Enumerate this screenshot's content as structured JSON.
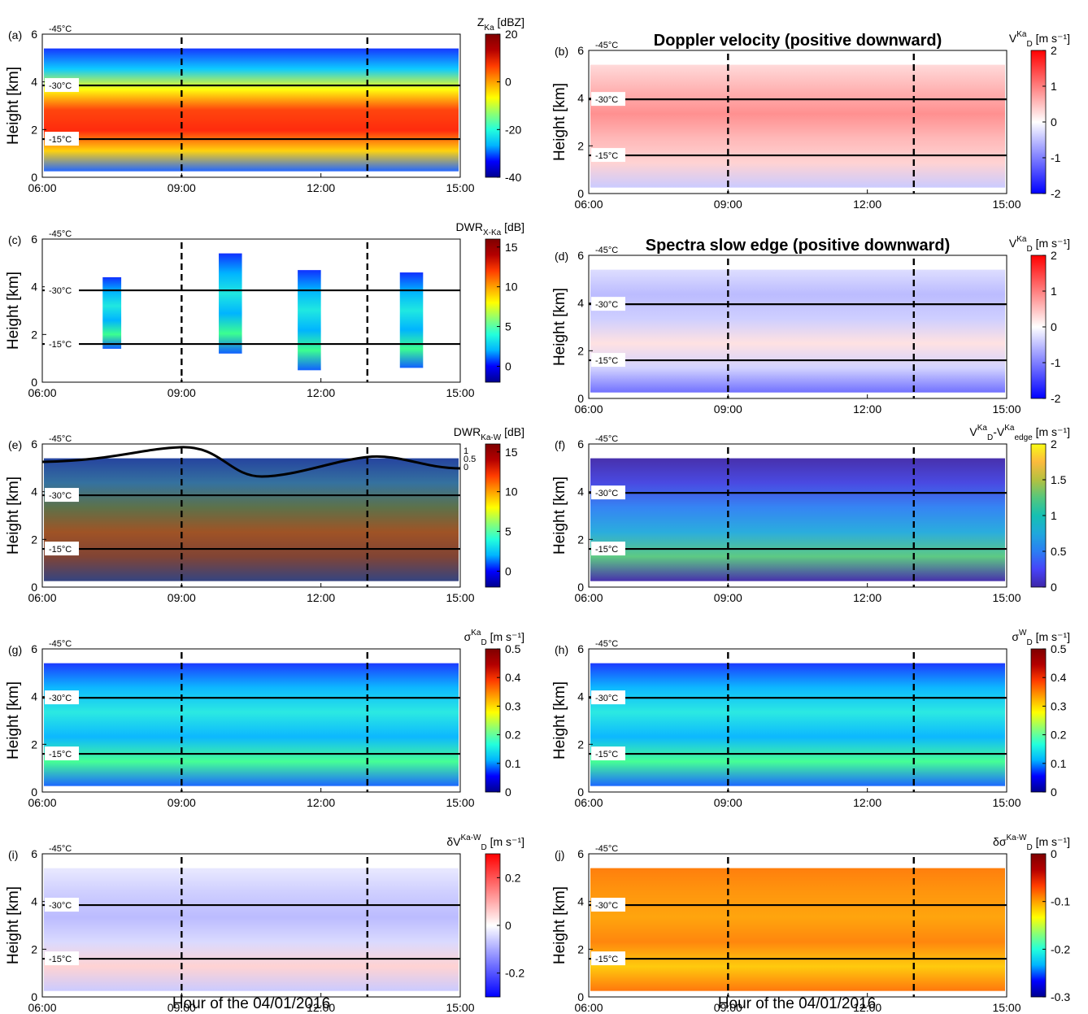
{
  "figure": {
    "xlabel": "Hour of the 04/01/2016",
    "ylabel": "Height [km]"
  },
  "colormaps": {
    "jet": [
      "#00008f",
      "#0000ff",
      "#00b4ff",
      "#23ffdc",
      "#8cff73",
      "#ffff00",
      "#ffa000",
      "#ff3c00",
      "#b40000",
      "#7f0000"
    ],
    "bwr": [
      "#0000ff",
      "#7f7fff",
      "#ffffff",
      "#ff7f7f",
      "#ff0000"
    ],
    "parula": [
      "#3e26a8",
      "#4743f8",
      "#2b7ef3",
      "#1fa8dc",
      "#15c0b2",
      "#55c77d",
      "#b4c140",
      "#fcba3d",
      "#f9fb14"
    ]
  },
  "chart_data": [
    {
      "panel": "(a)",
      "type": "heatmap",
      "title": "",
      "cmap": "jet",
      "cb_label": "Z",
      "cb_sub": "Ka",
      "cb_sup": "",
      "cb_unit": "[dBZ]",
      "cb_range": [
        -40,
        20
      ],
      "cb_ticks": [
        20,
        0,
        -20,
        -40
      ],
      "x_ticks": [
        "06:00",
        "09:00",
        "12:00",
        "15:00"
      ],
      "xlim": [
        6,
        15
      ],
      "y_ticks": [
        0,
        2,
        4,
        6
      ],
      "ylim": [
        0,
        6
      ],
      "dashed_x": [
        9,
        13
      ],
      "isotherms": [
        {
          "label": "-45°C",
          "h": 6.0
        },
        {
          "label": "-30°C",
          "h": 3.85
        },
        {
          "label": "-15°C",
          "h": 1.6
        }
      ]
    },
    {
      "panel": "(b)",
      "type": "heatmap",
      "title": "Doppler velocity (positive downward)",
      "cmap": "bwr",
      "cb_label": "V",
      "cb_sub": "D",
      "cb_sup": "Ka",
      "cb_unit": "[m s⁻¹]",
      "cb_range": [
        -2,
        2
      ],
      "cb_ticks": [
        2,
        1,
        0,
        -1,
        -2
      ],
      "x_ticks": [
        "06:00",
        "09:00",
        "12:00",
        "15:00"
      ],
      "xlim": [
        6,
        15
      ],
      "y_ticks": [
        0,
        2,
        4,
        6
      ],
      "ylim": [
        0,
        6
      ],
      "dashed_x": [
        9,
        13
      ],
      "isotherms": [
        {
          "label": "-45°C",
          "h": 6.0
        },
        {
          "label": "-30°C",
          "h": 3.95
        },
        {
          "label": "-15°C",
          "h": 1.6
        }
      ]
    },
    {
      "panel": "(c)",
      "type": "heatmap",
      "title": "",
      "cmap": "jet",
      "cb_label": "DWR",
      "cb_sub": "X-Ka",
      "cb_sup": "",
      "cb_unit": "[dB]",
      "cb_range": [
        -2,
        16
      ],
      "cb_ticks": [
        15,
        10,
        5,
        0
      ],
      "x_ticks": [
        "06:00",
        "09:00",
        "12:00",
        "15:00"
      ],
      "xlim": [
        6,
        15
      ],
      "y_ticks": [
        0,
        2,
        4,
        6
      ],
      "ylim": [
        0,
        6
      ],
      "dashed_x": [
        9,
        13
      ],
      "isotherms": [
        {
          "label": "-45°C",
          "h": 6.0
        },
        {
          "label": "-30°C",
          "h": 3.85
        },
        {
          "label": "-15°C",
          "h": 1.6
        }
      ]
    },
    {
      "panel": "(d)",
      "type": "heatmap",
      "title": "Spectra slow edge (positive downward)",
      "cmap": "bwr",
      "cb_label": "V",
      "cb_sub": "D",
      "cb_sup": "Ka",
      "cb_unit": "[m s⁻¹]",
      "cb_range": [
        -2,
        2
      ],
      "cb_ticks": [
        2,
        1,
        0,
        -1,
        -2
      ],
      "x_ticks": [
        "06:00",
        "09:00",
        "12:00",
        "15:00"
      ],
      "xlim": [
        6,
        15
      ],
      "y_ticks": [
        0,
        2,
        4,
        6
      ],
      "ylim": [
        0,
        6
      ],
      "dashed_x": [
        9,
        13
      ],
      "isotherms": [
        {
          "label": "-45°C",
          "h": 6.0
        },
        {
          "label": "-30°C",
          "h": 3.95
        },
        {
          "label": "-15°C",
          "h": 1.6
        }
      ]
    },
    {
      "panel": "(e)",
      "type": "heatmap",
      "title": "",
      "cmap": "jet",
      "cb_label": "DWR",
      "cb_sub": "Ka-W",
      "cb_sup": "",
      "cb_unit": "[dB]",
      "cb_range": [
        -2,
        16
      ],
      "cb_ticks": [
        15,
        10,
        5,
        0
      ],
      "x_ticks": [
        "06:00",
        "09:00",
        "12:00",
        "15:00"
      ],
      "xlim": [
        6,
        15
      ],
      "y_ticks": [
        0,
        2,
        4,
        6
      ],
      "ylim": [
        0,
        6
      ],
      "dashed_x": [
        9,
        13
      ],
      "isotherms": [
        {
          "label": "-45°C",
          "h": 6.0
        },
        {
          "label": "-30°C",
          "h": 3.85
        },
        {
          "label": "-15°C",
          "h": 1.6
        }
      ],
      "right_axis": {
        "ticks": [
          "1",
          "0.5",
          "0"
        ]
      }
    },
    {
      "panel": "(f)",
      "type": "heatmap",
      "title": "",
      "cmap": "parula",
      "cb_label": "V",
      "cb_sub": "D",
      "cb_sup": "Ka",
      "cb_label2": "-V",
      "cb_sub2": "edge",
      "cb_sup2": "Ka",
      "cb_unit": "[m s⁻¹]",
      "cb_range": [
        0,
        2
      ],
      "cb_ticks": [
        2,
        1.5,
        1,
        0.5,
        0
      ],
      "x_ticks": [
        "06:00",
        "09:00",
        "12:00",
        "15:00"
      ],
      "xlim": [
        6,
        15
      ],
      "y_ticks": [
        0,
        2,
        4,
        6
      ],
      "ylim": [
        0,
        6
      ],
      "dashed_x": [
        9,
        13
      ],
      "isotherms": [
        {
          "label": "-45°C",
          "h": 6.0
        },
        {
          "label": "-30°C",
          "h": 3.95
        },
        {
          "label": "-15°C",
          "h": 1.6
        }
      ]
    },
    {
      "panel": "(g)",
      "type": "heatmap",
      "title": "",
      "cmap": "jet",
      "cb_label": "σ",
      "cb_sub": "D",
      "cb_sup": "Ka",
      "cb_unit": "[m s⁻¹]",
      "cb_range": [
        0,
        0.5
      ],
      "cb_ticks": [
        0.5,
        0.4,
        0.3,
        0.2,
        0.1,
        0
      ],
      "x_ticks": [
        "06:00",
        "09:00",
        "12:00",
        "15:00"
      ],
      "xlim": [
        6,
        15
      ],
      "y_ticks": [
        0,
        2,
        4,
        6
      ],
      "ylim": [
        0,
        6
      ],
      "dashed_x": [
        9,
        13
      ],
      "isotherms": [
        {
          "label": "-45°C",
          "h": 6.0
        },
        {
          "label": "-30°C",
          "h": 3.95
        },
        {
          "label": "-15°C",
          "h": 1.6
        }
      ]
    },
    {
      "panel": "(h)",
      "type": "heatmap",
      "title": "",
      "cmap": "jet",
      "cb_label": "σ",
      "cb_sub": "D",
      "cb_sup": "W",
      "cb_unit": "[m s⁻¹]",
      "cb_range": [
        0,
        0.5
      ],
      "cb_ticks": [
        0.5,
        0.4,
        0.3,
        0.2,
        0.1,
        0
      ],
      "x_ticks": [
        "06:00",
        "09:00",
        "12:00",
        "15:00"
      ],
      "xlim": [
        6,
        15
      ],
      "y_ticks": [
        0,
        2,
        4,
        6
      ],
      "ylim": [
        0,
        6
      ],
      "dashed_x": [
        9,
        13
      ],
      "isotherms": [
        {
          "label": "-45°C",
          "h": 6.0
        },
        {
          "label": "-30°C",
          "h": 3.95
        },
        {
          "label": "-15°C",
          "h": 1.6
        }
      ]
    },
    {
      "panel": "(i)",
      "type": "heatmap",
      "title": "",
      "cmap": "bwr",
      "cb_label": "δV",
      "cb_sub": "D",
      "cb_sup": "Ka-W",
      "cb_unit": "[m s⁻¹]",
      "cb_range": [
        -0.3,
        0.3
      ],
      "cb_ticks": [
        0.2,
        0,
        -0.2
      ],
      "x_ticks": [
        "06:00",
        "09:00",
        "12:00",
        "15:00"
      ],
      "xlim": [
        6,
        15
      ],
      "y_ticks": [
        0,
        2,
        4,
        6
      ],
      "ylim": [
        0,
        6
      ],
      "dashed_x": [
        9,
        13
      ],
      "isotherms": [
        {
          "label": "-45°C",
          "h": 6.0
        },
        {
          "label": "-30°C",
          "h": 3.85
        },
        {
          "label": "-15°C",
          "h": 1.6
        }
      ]
    },
    {
      "panel": "(j)",
      "type": "heatmap",
      "title": "",
      "cmap": "jet",
      "cb_label": "δσ",
      "cb_sub": "D",
      "cb_sup": "Ka-W",
      "cb_unit": "[m s⁻¹]",
      "cb_range": [
        -0.3,
        0.0
      ],
      "cb_ticks": [
        0,
        -0.1,
        -0.2,
        -0.3
      ],
      "x_ticks": [
        "06:00",
        "09:00",
        "12:00",
        "15:00"
      ],
      "xlim": [
        6,
        15
      ],
      "y_ticks": [
        0,
        2,
        4,
        6
      ],
      "ylim": [
        0,
        6
      ],
      "dashed_x": [
        9,
        13
      ],
      "isotherms": [
        {
          "label": "-45°C",
          "h": 6.0
        },
        {
          "label": "-30°C",
          "h": 3.85
        },
        {
          "label": "-15°C",
          "h": 1.6
        }
      ]
    }
  ]
}
